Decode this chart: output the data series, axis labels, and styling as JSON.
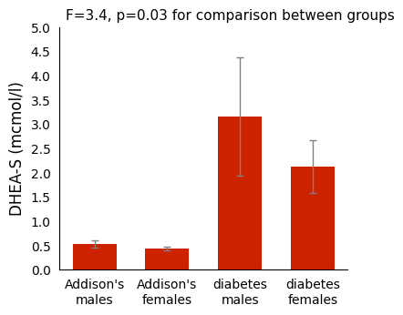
{
  "categories": [
    "Addison's\nmales",
    "Addison's\nfemales",
    "diabetes\nmales",
    "diabetes\nfemales"
  ],
  "values": [
    0.53,
    0.44,
    3.15,
    2.12
  ],
  "errors": [
    0.08,
    0.04,
    1.22,
    0.55
  ],
  "bar_color": "#CC2200",
  "ylabel": "DHEA-S (mcmol/l)",
  "annotation": "F=3.4, p=0.03 for comparison between groups",
  "ylim": [
    0,
    5
  ],
  "yticks": [
    0,
    0.5,
    1,
    1.5,
    2,
    2.5,
    3,
    3.5,
    4,
    4.5,
    5
  ],
  "annotation_fontsize": 11,
  "ylabel_fontsize": 12,
  "tick_fontsize": 10,
  "background_color": "#ffffff",
  "bar_width": 0.6
}
